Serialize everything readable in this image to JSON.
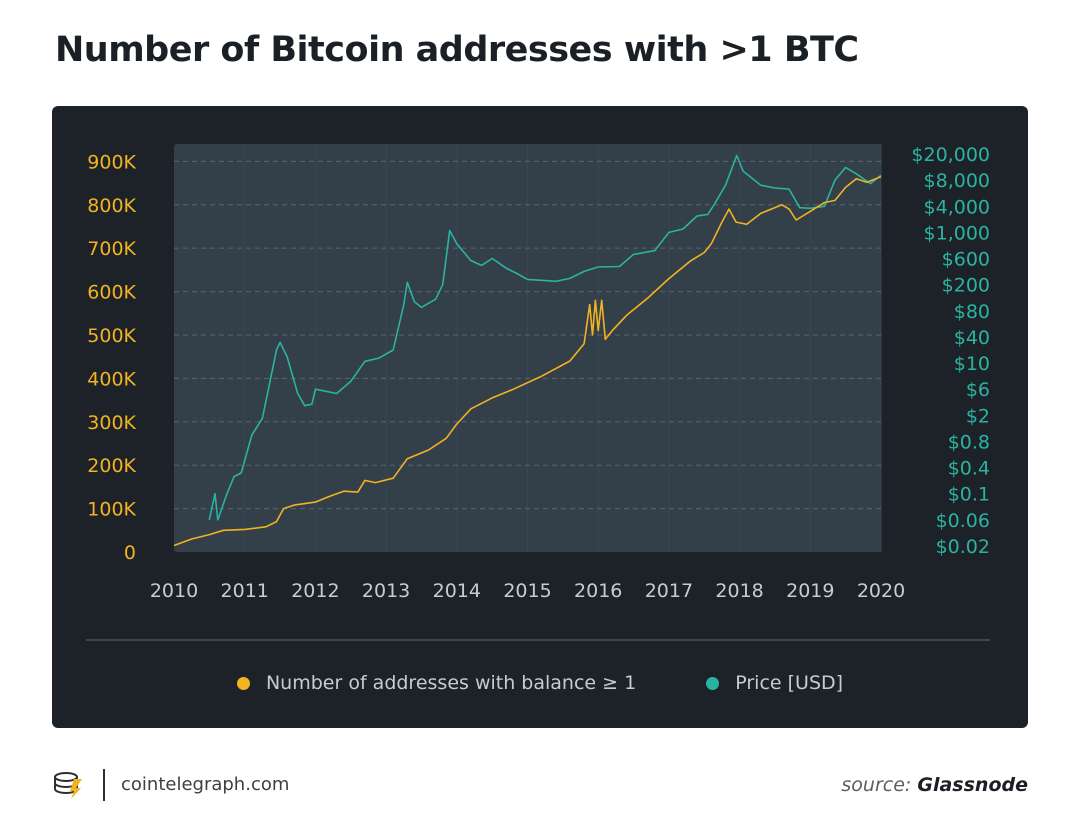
{
  "title": "Number of Bitcoin addresses with >1 BTC",
  "footer": {
    "site": "cointelegraph.com",
    "source_prefix": "source:",
    "source_name": "Glassnode"
  },
  "colors": {
    "page_background": "#ffffff",
    "card_background": "#1c2228",
    "plot_background": "#333f49",
    "addresses_series": "#f2b322",
    "price_series": "#2bb3a2",
    "axis_text": "#c7ccd1"
  },
  "chart_data": {
    "type": "line",
    "title": "Number of Bitcoin addresses with >1 BTC",
    "grid": true,
    "legend_position": "bottom",
    "x_axis": {
      "ticks": [
        "2010",
        "2011",
        "2012",
        "2013",
        "2014",
        "2015",
        "2016",
        "2017",
        "2018",
        "2019",
        "2020"
      ],
      "range": [
        2010,
        2020
      ]
    },
    "y_left": {
      "ticks": [
        "0",
        "100K",
        "200K",
        "300K",
        "400K",
        "500K",
        "600K",
        "700K",
        "800K",
        "900K"
      ],
      "range": [
        0,
        940000
      ]
    },
    "y_right": {
      "scale": "log",
      "ticks": [
        "$0.02",
        "$0.06",
        "$0.1",
        "$0.4",
        "$0.8",
        "$2",
        "$6",
        "$10",
        "$40",
        "$80",
        "$200",
        "$600",
        "$1,000",
        "$4,000",
        "$8,000",
        "$20,000"
      ]
    },
    "series": [
      {
        "name": "Number of addresses with balance ≥ 1",
        "axis": "left",
        "color": "#f2b322",
        "points": [
          [
            2010.0,
            15000
          ],
          [
            2010.25,
            30000
          ],
          [
            2010.5,
            40000
          ],
          [
            2010.7,
            50000
          ],
          [
            2011.0,
            52000
          ],
          [
            2011.3,
            58000
          ],
          [
            2011.45,
            70000
          ],
          [
            2011.55,
            100000
          ],
          [
            2011.7,
            108000
          ],
          [
            2012.0,
            115000
          ],
          [
            2012.2,
            128000
          ],
          [
            2012.4,
            140000
          ],
          [
            2012.6,
            138000
          ],
          [
            2012.7,
            165000
          ],
          [
            2012.85,
            160000
          ],
          [
            2013.1,
            170000
          ],
          [
            2013.3,
            215000
          ],
          [
            2013.6,
            235000
          ],
          [
            2013.85,
            262000
          ],
          [
            2014.0,
            295000
          ],
          [
            2014.2,
            330000
          ],
          [
            2014.5,
            355000
          ],
          [
            2014.8,
            375000
          ],
          [
            2015.2,
            405000
          ],
          [
            2015.6,
            440000
          ],
          [
            2015.8,
            480000
          ],
          [
            2015.88,
            570000
          ],
          [
            2015.92,
            500000
          ],
          [
            2015.96,
            580000
          ],
          [
            2016.0,
            510000
          ],
          [
            2016.05,
            580000
          ],
          [
            2016.1,
            490000
          ],
          [
            2016.2,
            510000
          ],
          [
            2016.4,
            545000
          ],
          [
            2016.7,
            585000
          ],
          [
            2017.0,
            630000
          ],
          [
            2017.3,
            670000
          ],
          [
            2017.5,
            690000
          ],
          [
            2017.6,
            710000
          ],
          [
            2017.75,
            760000
          ],
          [
            2017.85,
            790000
          ],
          [
            2017.95,
            760000
          ],
          [
            2018.1,
            755000
          ],
          [
            2018.3,
            780000
          ],
          [
            2018.6,
            800000
          ],
          [
            2018.7,
            790000
          ],
          [
            2018.8,
            765000
          ],
          [
            2019.0,
            785000
          ],
          [
            2019.2,
            805000
          ],
          [
            2019.35,
            810000
          ],
          [
            2019.5,
            840000
          ],
          [
            2019.65,
            860000
          ],
          [
            2019.8,
            852000
          ],
          [
            2020.0,
            865000
          ]
        ]
      },
      {
        "name": "Price [USD]",
        "axis": "right",
        "color": "#2bb3a2",
        "points": [
          [
            2010.5,
            0.06
          ],
          [
            2010.58,
            0.1
          ],
          [
            2010.62,
            0.06
          ],
          [
            2010.75,
            0.1
          ],
          [
            2010.85,
            0.25
          ],
          [
            2010.95,
            0.3
          ],
          [
            2011.1,
            1.0
          ],
          [
            2011.25,
            1.8
          ],
          [
            2011.45,
            20
          ],
          [
            2011.5,
            30
          ],
          [
            2011.6,
            14
          ],
          [
            2011.75,
            5
          ],
          [
            2011.85,
            3
          ],
          [
            2011.95,
            3.2
          ],
          [
            2012.0,
            6
          ],
          [
            2012.15,
            5.5
          ],
          [
            2012.3,
            5
          ],
          [
            2012.5,
            7
          ],
          [
            2012.7,
            11
          ],
          [
            2012.9,
            13
          ],
          [
            2013.1,
            20
          ],
          [
            2013.25,
            100
          ],
          [
            2013.3,
            220
          ],
          [
            2013.4,
            110
          ],
          [
            2013.5,
            90
          ],
          [
            2013.7,
            120
          ],
          [
            2013.8,
            200
          ],
          [
            2013.9,
            1100
          ],
          [
            2014.0,
            800
          ],
          [
            2014.2,
            550
          ],
          [
            2014.35,
            450
          ],
          [
            2014.5,
            600
          ],
          [
            2014.7,
            400
          ],
          [
            2014.85,
            320
          ],
          [
            2015.0,
            250
          ],
          [
            2015.2,
            240
          ],
          [
            2015.4,
            230
          ],
          [
            2015.6,
            260
          ],
          [
            2015.8,
            350
          ],
          [
            2016.0,
            420
          ],
          [
            2016.3,
            430
          ],
          [
            2016.5,
            650
          ],
          [
            2016.8,
            700
          ],
          [
            2017.0,
            1000
          ],
          [
            2017.2,
            1200
          ],
          [
            2017.4,
            2400
          ],
          [
            2017.55,
            2600
          ],
          [
            2017.65,
            4300
          ],
          [
            2017.8,
            7000
          ],
          [
            2017.96,
            19000
          ],
          [
            2018.05,
            11000
          ],
          [
            2018.15,
            9000
          ],
          [
            2018.3,
            7000
          ],
          [
            2018.5,
            6500
          ],
          [
            2018.7,
            6300
          ],
          [
            2018.85,
            3700
          ],
          [
            2019.0,
            3600
          ],
          [
            2019.2,
            4000
          ],
          [
            2019.35,
            8000
          ],
          [
            2019.5,
            12500
          ],
          [
            2019.65,
            10000
          ],
          [
            2019.85,
            7300
          ],
          [
            2020.0,
            9500
          ]
        ]
      }
    ]
  }
}
